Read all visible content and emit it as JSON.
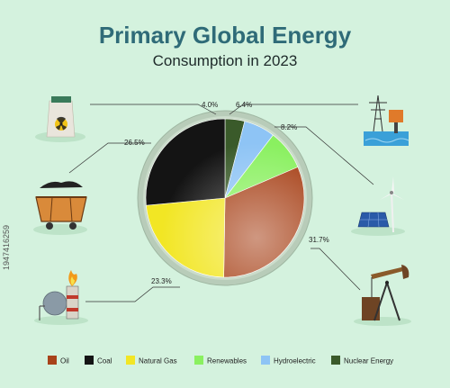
{
  "title": "Primary Global Energy",
  "subtitle": "Consumption in 2023",
  "watermark": "1947416259",
  "chart_data": {
    "type": "pie",
    "title": "Primary Global Energy Consumption in 2023",
    "slices": [
      {
        "name": "Nuclear Energy",
        "value": 4.0,
        "label": "4.0%",
        "color": "#3a5a2a"
      },
      {
        "name": "Hydroelectric",
        "value": 6.4,
        "label": "6.4%",
        "color": "#8ec4f5"
      },
      {
        "name": "Renewables",
        "value": 8.2,
        "label": "8.2%",
        "color": "#8af060"
      },
      {
        "name": "Oil",
        "value": 31.7,
        "label": "31.7%",
        "color": "#a8431a"
      },
      {
        "name": "Natural Gas",
        "value": 23.3,
        "label": "23.3%",
        "color": "#f2e624"
      },
      {
        "name": "Coal",
        "value": 26.5,
        "label": "26.5%",
        "color": "#141414"
      }
    ],
    "legend": [
      "Oil",
      "Coal",
      "Natural Gas",
      "Renewables",
      "Hydroelectric",
      "Nuclear Energy"
    ],
    "legend_placement": "bottom"
  }
}
